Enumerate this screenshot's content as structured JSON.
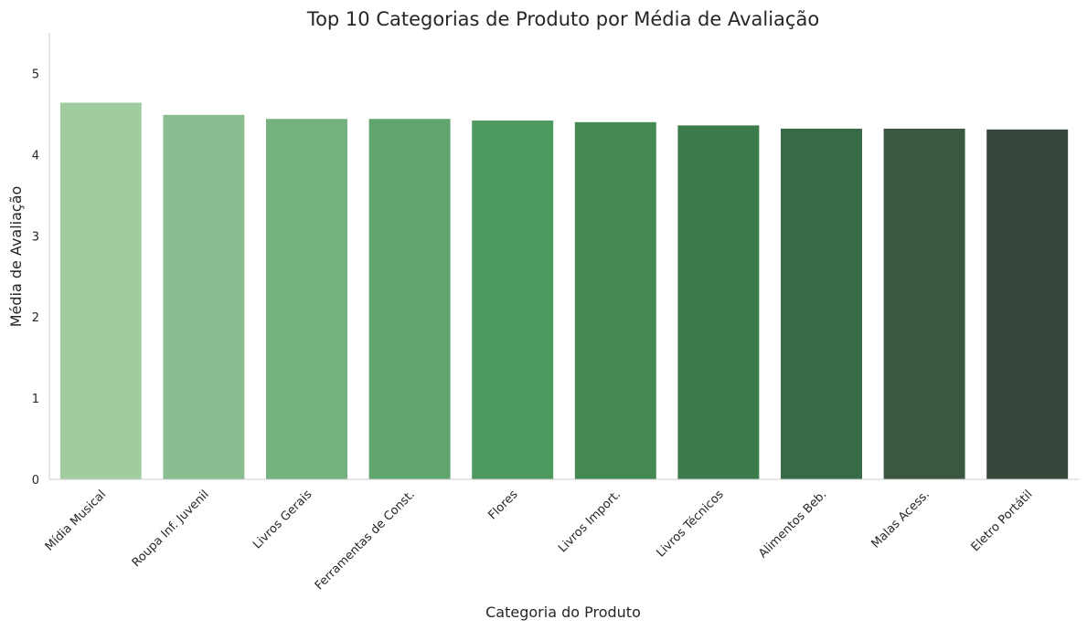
{
  "chart_data": {
    "type": "bar",
    "title": "Top 10 Categorias de Produto por Média de Avaliação",
    "xlabel": "Categoria do Produto",
    "ylabel": "Média de Avaliação",
    "categories": [
      "Mídia Musical",
      "Roupa Inf. Juvenil",
      "Livros Gerais",
      "Ferramentas de Const.",
      "Flores",
      "Livros Import.",
      "Livros Técnicos",
      "Alimentos Beb.",
      "Malas Acess.",
      "Eletro Portátil"
    ],
    "values": [
      4.64,
      4.49,
      4.44,
      4.44,
      4.42,
      4.4,
      4.36,
      4.32,
      4.32,
      4.31
    ],
    "colors": [
      "#a1cc9f",
      "#8abe90",
      "#75b17f",
      "#60a46e",
      "#4e995f",
      "#448854",
      "#3c7b4b",
      "#386a47",
      "#3a5742",
      "#37473b"
    ],
    "ylim": [
      0,
      5.5
    ],
    "yticks": [
      0,
      1,
      2,
      3,
      4,
      5
    ],
    "grid": false,
    "legend": "none"
  }
}
